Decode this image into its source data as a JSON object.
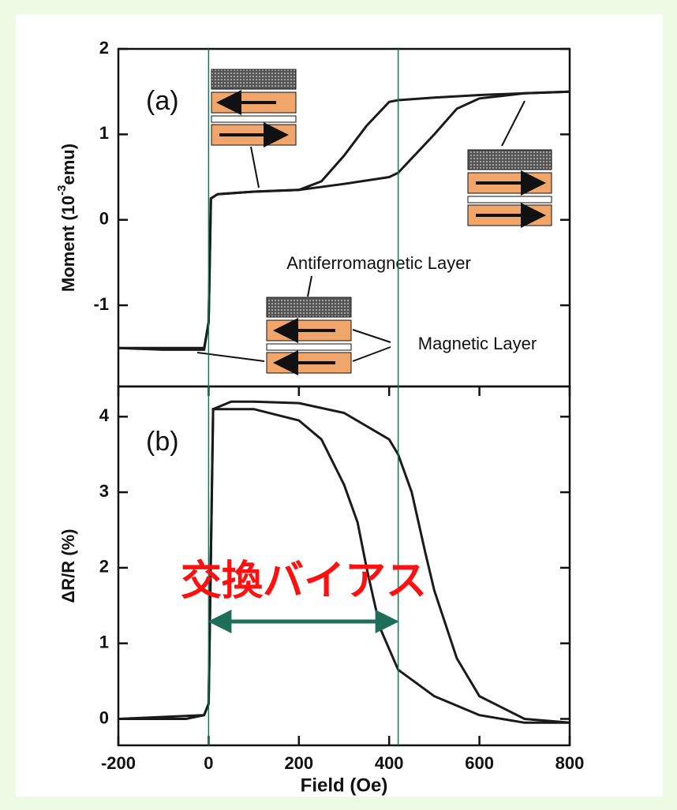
{
  "chart_data": [
    {
      "type": "line",
      "panel_label": "(a)",
      "ylabel": "Moment (10",
      "ylabel_sup": "-3",
      "ylabel_end": "emu)",
      "annotations": [
        "Antiferromagnetic Layer",
        "Magnetic Layer"
      ],
      "xlim": [
        -200,
        800
      ],
      "ylim": [
        -1.95,
        2
      ],
      "yticks": [
        -1,
        0,
        1,
        2
      ],
      "series": [
        {
          "color": "#1a1a1a",
          "x": [
            -200,
            -100,
            -10,
            0,
            5,
            20,
            100,
            200,
            300,
            400,
            420,
            500,
            550,
            600,
            700,
            800
          ],
          "values": [
            -1.5,
            -1.52,
            -1.52,
            -1.2,
            0.25,
            0.3,
            0.33,
            0.35,
            0.42,
            0.5,
            0.55,
            1.0,
            1.3,
            1.42,
            1.48,
            1.5
          ]
        },
        {
          "color": "#1a1a1a",
          "x": [
            -200,
            -10,
            0,
            5,
            20,
            100,
            200,
            250,
            300,
            350,
            400,
            420,
            500,
            600,
            700,
            800
          ],
          "values": [
            -1.5,
            -1.5,
            -1.2,
            0.25,
            0.3,
            0.33,
            0.35,
            0.45,
            0.75,
            1.1,
            1.38,
            1.4,
            1.43,
            1.46,
            1.48,
            1.5
          ]
        }
      ]
    },
    {
      "type": "line",
      "panel_label": "(b)",
      "ylabel": "ΔR/R (%)",
      "xlabel": "Field (Oe)",
      "annotation": "交換バイアス",
      "vlines": [
        0,
        420
      ],
      "vline_color": "#1e6e5a",
      "xlim": [
        -200,
        800
      ],
      "xticks": [
        -200,
        0,
        200,
        400,
        600,
        800
      ],
      "ylim": [
        -0.35,
        4.4
      ],
      "yticks": [
        0,
        1,
        2,
        3,
        4
      ],
      "series": [
        {
          "color": "#1a1a1a",
          "x": [
            -200,
            -50,
            -10,
            0,
            10,
            50,
            100,
            200,
            300,
            400,
            420,
            450,
            480,
            500,
            550,
            600,
            700,
            800
          ],
          "values": [
            0,
            0,
            0.05,
            0.2,
            4.1,
            4.2,
            4.2,
            4.18,
            4.05,
            3.7,
            3.5,
            3.0,
            2.2,
            1.7,
            0.8,
            0.3,
            0.0,
            -0.05
          ]
        },
        {
          "color": "#1a1a1a",
          "x": [
            -200,
            -10,
            0,
            10,
            50,
            100,
            200,
            250,
            300,
            330,
            350,
            380,
            420,
            500,
            600,
            700,
            800
          ],
          "values": [
            0,
            0.05,
            0.2,
            4.1,
            4.1,
            4.1,
            3.95,
            3.7,
            3.1,
            2.6,
            2.0,
            1.2,
            0.65,
            0.3,
            0.05,
            -0.05,
            -0.05
          ]
        }
      ]
    }
  ]
}
